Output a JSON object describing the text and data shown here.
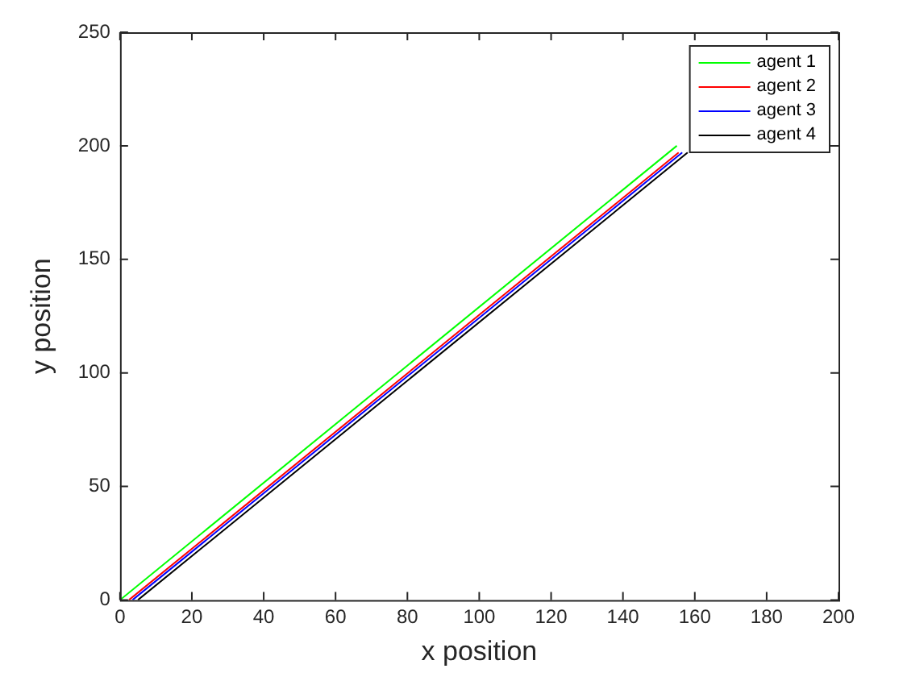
{
  "chart_data": {
    "type": "line",
    "xlabel": "x position",
    "ylabel": "y position",
    "xlim": [
      0,
      200
    ],
    "ylim": [
      0,
      250
    ],
    "xticks": [
      0,
      20,
      40,
      60,
      80,
      100,
      120,
      140,
      160,
      180,
      200
    ],
    "yticks": [
      0,
      50,
      100,
      150,
      200,
      250
    ],
    "grid": false,
    "legend": "top right",
    "marker": "none",
    "line_style": "solid",
    "series": [
      {
        "name": "agent 1",
        "color": "#00ff00",
        "x": [
          0,
          155
        ],
        "values": [
          0,
          200
        ]
      },
      {
        "name": "agent 2",
        "color": "#ff0000",
        "x": [
          2.5,
          155.5
        ],
        "values": [
          0,
          197
        ]
      },
      {
        "name": "agent 3",
        "color": "#0000ff",
        "x": [
          3.5,
          156.5
        ],
        "values": [
          0,
          197
        ]
      },
      {
        "name": "agent 4",
        "color": "#000000",
        "x": [
          5,
          158
        ],
        "values": [
          0,
          197
        ]
      }
    ]
  }
}
